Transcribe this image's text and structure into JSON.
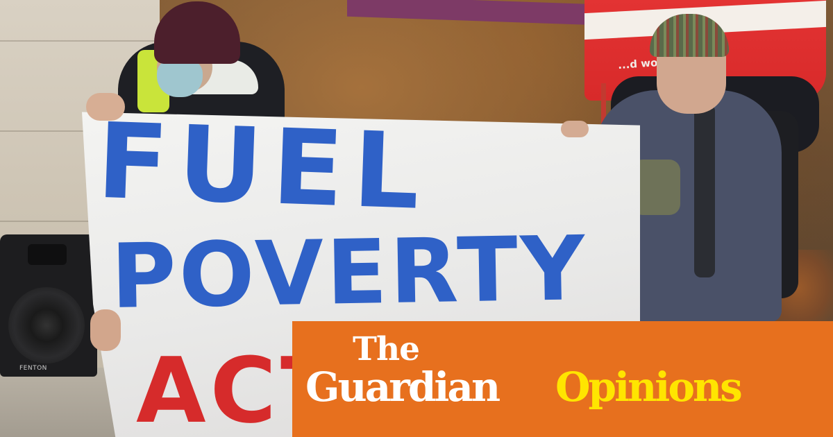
{
  "banner": {
    "line1": "FUEL",
    "line2": "POVERTY",
    "line3": "ACT"
  },
  "flag": {
    "text": "...d wo   ...isinsgro"
  },
  "speaker": {
    "brand": "FENTON"
  },
  "brand": {
    "the": "The",
    "guardian": "Guardian",
    "section": "Opinions"
  },
  "colors": {
    "brand_orange": "#e7701e",
    "brand_white": "#ffffff",
    "section_yellow": "#ffe500",
    "banner_blue": "#2f61c7",
    "banner_red": "#d62b2b"
  }
}
